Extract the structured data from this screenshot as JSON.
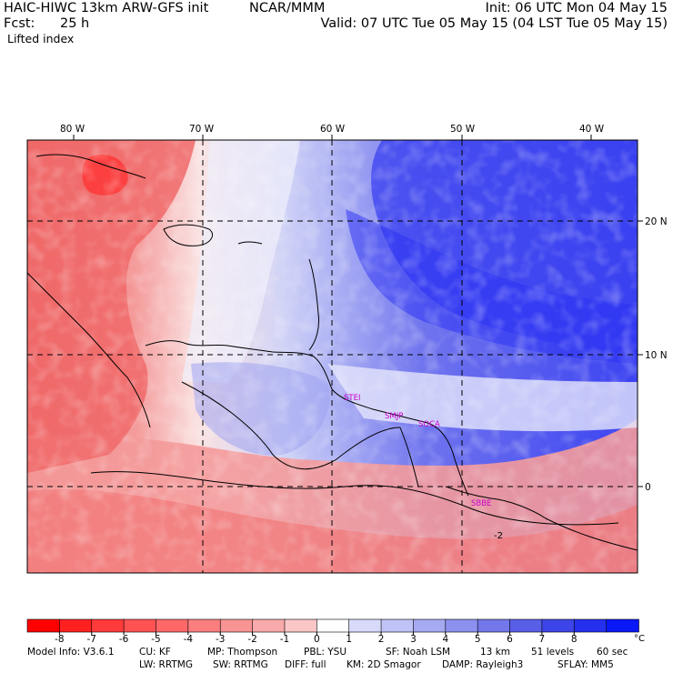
{
  "header": {
    "title": "HAIC-HIWC 13km ARW-GFS init",
    "org": "NCAR/MMM",
    "init": "Init: 06 UTC Mon 04 May 15",
    "fcst_label": "Fcst:",
    "fcst_value": "25 h",
    "valid": "Valid: 07 UTC Tue 05 May 15 (04 LST Tue 05 May 15)",
    "field": "Lifted index"
  },
  "map": {
    "longitudes": [
      "80 W",
      "70 W",
      "60 W",
      "50 W",
      "40 W"
    ],
    "latitudes": [
      "20 N",
      "10 N",
      "0"
    ],
    "stations": [
      "STEI",
      "SMJP",
      "SOCA",
      "SBBE"
    ],
    "contour_label": "-2",
    "colors": {
      "strong_negative": "#ff2a2a",
      "negative": "#f58a8a",
      "weak_negative": "#fbd0d0",
      "neutral": "#ffffff",
      "weak_positive": "#cdd0f6",
      "positive": "#6f74ee",
      "strong_positive": "#2a30ff",
      "station_label": "#cc00cc"
    }
  },
  "colorbar": {
    "ticks": [
      "-8",
      "-7",
      "-6",
      "-5",
      "-4",
      "-3",
      "-2",
      "-1",
      "0",
      "1",
      "2",
      "3",
      "4",
      "5",
      "6",
      "7",
      "8"
    ],
    "unit": "°C",
    "colors": [
      "#ff0000",
      "#ff2020",
      "#ff3a3a",
      "#ff5252",
      "#fe6868",
      "#fa7e7e",
      "#f89494",
      "#f8aaaa",
      "#fbc6c6",
      "#ffffff",
      "#d8dafa",
      "#c0c3f6",
      "#a6aaf2",
      "#8c90ee",
      "#7277ea",
      "#585ee6",
      "#3e45e8",
      "#2530ef",
      "#0a18f8"
    ]
  },
  "model_info": {
    "line1": {
      "model": "Model Info: V3.6.1",
      "cu": "CU: KF",
      "mp": "MP: Thompson",
      "pbl": "PBL: YSU",
      "sf": "SF: Noah LSM",
      "res": "13 km",
      "levels": "51 levels",
      "dt": "60 sec"
    },
    "line2": {
      "lw": "LW: RRTMG",
      "sw": "SW: RRTMG",
      "diff": "DIFF: full",
      "km": "KM: 2D Smagor",
      "damp": "DAMP: Rayleigh3",
      "sflay": "SFLAY: MM5"
    }
  }
}
